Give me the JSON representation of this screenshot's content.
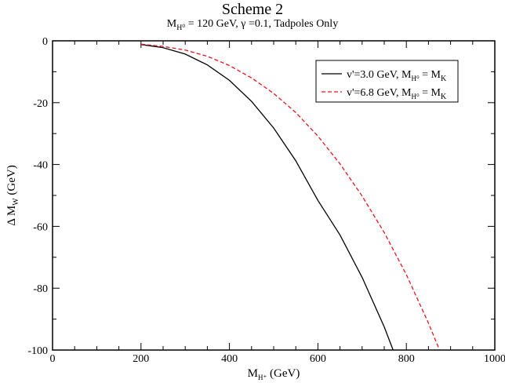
{
  "chart_data": {
    "type": "line",
    "title": "Scheme 2",
    "subtitle_parts": {
      "mass_label": "M",
      "mass_sub": "H⁰",
      "mass_value": " = 120 GeV,  γ =0.1,  Tadpoles Only"
    },
    "xlabel": "M",
    "xlabel_sub": "H⁺",
    "xlabel_unit": " (GeV)",
    "ylabel": "Δ M",
    "ylabel_sub": "W",
    "ylabel_unit": " (GeV)",
    "xlim": [
      0,
      1000
    ],
    "ylim": [
      -100,
      0
    ],
    "xticks": [
      0,
      200,
      400,
      600,
      800,
      1000
    ],
    "yticks": [
      0,
      -20,
      -40,
      -60,
      -80,
      -100
    ],
    "grid": false,
    "legend_position": "top-right",
    "series": [
      {
        "name": "v'=3.0 GeV, M_H0 = M_K",
        "legend_main": "v'=3.0 GeV, M",
        "legend_sub1": "H⁰",
        "legend_mid": " = M",
        "legend_sub2": "K",
        "color": "#000000",
        "dash": "solid",
        "x": [
          200,
          250,
          300,
          350,
          400,
          450,
          500,
          550,
          600,
          650,
          700,
          750,
          770
        ],
        "y": [
          -1.2,
          -2.2,
          -4.3,
          -7.8,
          -12.8,
          -19.6,
          -28.2,
          -38.8,
          -51.6,
          -62.8,
          -76.5,
          -92.5,
          -100
        ]
      },
      {
        "name": "v'=6.8 GeV, M_H0 = M_K",
        "legend_main": "v'=6.8 GeV, M",
        "legend_sub1": "H⁰",
        "legend_mid": " = M",
        "legend_sub2": "K",
        "color": "#e8141c",
        "dash": "dashed",
        "x": [
          200,
          250,
          300,
          350,
          400,
          450,
          500,
          550,
          600,
          650,
          700,
          750,
          800,
          850,
          875
        ],
        "y": [
          -1.1,
          -1.8,
          -3.0,
          -5.0,
          -8.0,
          -12.0,
          -17.0,
          -23.2,
          -30.8,
          -39.8,
          -50.2,
          -62.0,
          -75.6,
          -91.3,
          -100
        ]
      }
    ]
  }
}
